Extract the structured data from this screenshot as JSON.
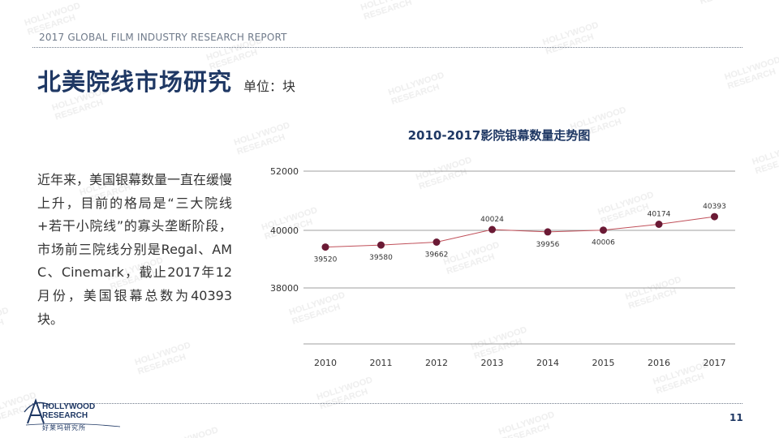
{
  "header": {
    "report_title": "2017 GLOBAL FILM INDUSTRY RESEARCH REPORT",
    "page_title": "北美院线市场研究",
    "unit_label": "单位：块"
  },
  "body": {
    "paragraph": "近年来，美国银幕数量一直在缓慢上升，目前的格局是“三大院线+若干小院线”的寡头垄断阶段，市场前三院线分别是Regal、AMC、Cinemark，截止2017年12月份，美国银幕总数为40393块。"
  },
  "footer": {
    "logo_en_line1": "HOLLYWOOD",
    "logo_en_line2": "RESEARCH",
    "logo_cn": "好莱坞研究所",
    "page_number": "11"
  },
  "colors": {
    "title": "#1f3864",
    "line": "#c0505a",
    "marker": "#6b1a35",
    "grid": "#7f7f7f"
  },
  "chart_data": {
    "type": "line",
    "title": "2010-2017影院银幕数量走势图",
    "xlabel": "",
    "ylabel": "",
    "categories": [
      "2010",
      "2011",
      "2012",
      "2013",
      "2014",
      "2015",
      "2016",
      "2017"
    ],
    "series": [
      {
        "values": [
          39520,
          39580,
          39662,
          40024,
          39956,
          40006,
          40174,
          40393
        ]
      }
    ],
    "y_ticks": [
      "52000",
      "40000",
      "38000"
    ],
    "grid": true,
    "legend": "none",
    "data_labels": true
  }
}
